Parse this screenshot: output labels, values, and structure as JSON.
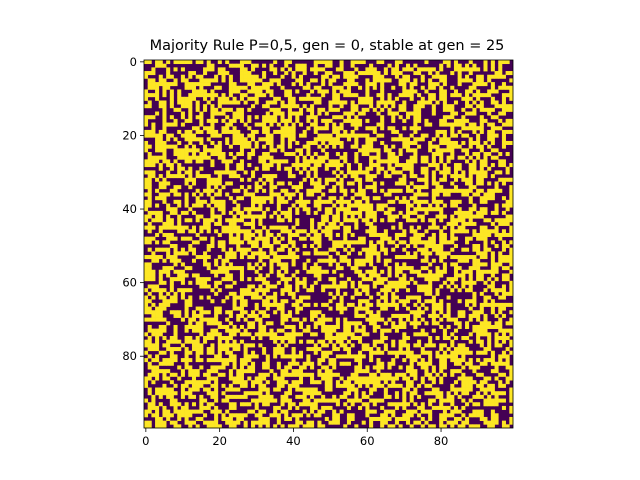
{
  "chart_data": {
    "type": "heatmap",
    "title": "Majority Rule P=0,5, gen = 0, stable at gen = 25",
    "xlabel": "",
    "ylabel": "",
    "grid_size": [
      100,
      100
    ],
    "xlim": [
      -0.5,
      99.5
    ],
    "ylim": [
      99.5,
      -0.5
    ],
    "x_ticks": [
      0,
      20,
      40,
      60,
      80
    ],
    "y_ticks": [
      0,
      20,
      40,
      60,
      80
    ],
    "x_tick_labels": [
      "0",
      "20",
      "40",
      "60",
      "80"
    ],
    "y_tick_labels": [
      "0",
      "20",
      "40",
      "60",
      "80"
    ],
    "probability": 0.5,
    "generation": 0,
    "stable_generation": 25,
    "colormap": "viridis",
    "colors": {
      "state_0": "#440154",
      "state_1": "#fde725"
    },
    "grid": false
  }
}
